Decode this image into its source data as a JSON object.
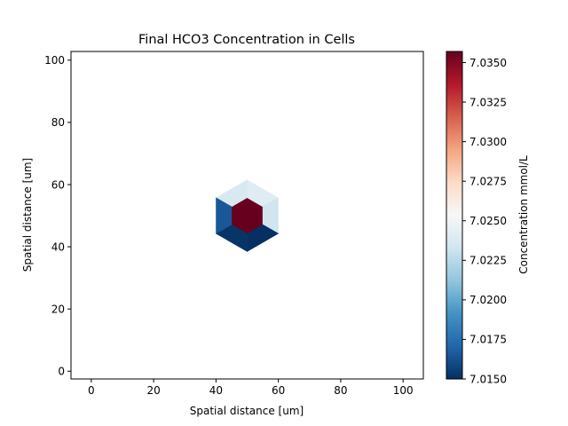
{
  "chart_data": {
    "type": "heatmap",
    "title": "Final HCO3 Concentration in Cells",
    "xlabel": "Spatial distance [um]",
    "ylabel": "Spatial distance [um]",
    "xlim": [
      -6.5,
      106.5
    ],
    "ylim": [
      -2.5,
      102.8
    ],
    "xticks": [
      0,
      20,
      40,
      60,
      80,
      100
    ],
    "yticks": [
      0,
      20,
      40,
      60,
      80,
      100
    ],
    "grid": false,
    "cell_center": [
      50,
      50
    ],
    "cells": [
      {
        "name": "center",
        "value": 7.0357
      },
      {
        "name": "upper-left",
        "value": 7.0237
      },
      {
        "name": "top",
        "value": 7.0241
      },
      {
        "name": "upper-right",
        "value": 7.0233
      },
      {
        "name": "lower-right",
        "value": 7.015
      },
      {
        "name": "bottom",
        "value": 7.0152
      },
      {
        "name": "lower-left",
        "value": 7.0165
      }
    ],
    "colorbar": {
      "label": "Concentration mmol/L",
      "min": 7.015,
      "max": 7.0357,
      "colormap": "RdBu_r",
      "ticks": [
        "7.0150",
        "7.0175",
        "7.0200",
        "7.0225",
        "7.0250",
        "7.0275",
        "7.0300",
        "7.0325",
        "7.0350"
      ]
    }
  }
}
